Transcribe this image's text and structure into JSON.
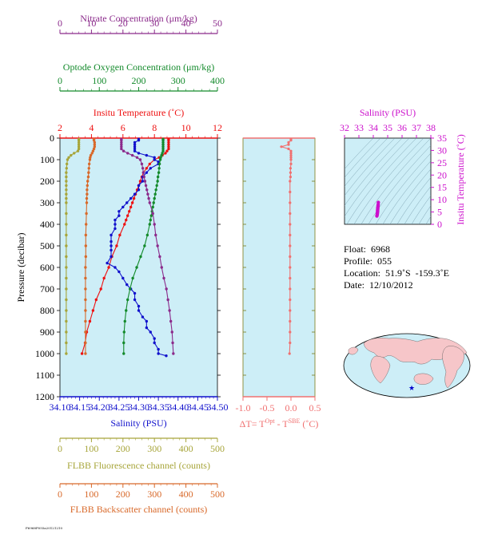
{
  "colors": {
    "nitrate": "#8b2a8b",
    "oxygen": "#138a2b",
    "temperature": "#ee1111",
    "salinity": "#1111cc",
    "fluorescence": "#a7a53a",
    "backscatter": "#d8692a",
    "delta_t": "#f07070",
    "salinity_top": "#cc11cc",
    "plot_bg": "#cdeef7",
    "axis_olive": "#7a7a18"
  },
  "info": {
    "float": "Float:  6968",
    "profile": "Profile:  055",
    "location": "Location:  51.9˚S  -159.3˚E",
    "date": "Date:  12/10/2012"
  },
  "footer_text": "F6968P055a20121210",
  "chart_data": [
    {
      "type": "line",
      "title": "",
      "ylabel": "Pressure (decibar)",
      "ylim": [
        1200,
        0
      ],
      "yticks": [
        "0",
        "100",
        "200",
        "300",
        "400",
        "500",
        "600",
        "700",
        "800",
        "900",
        "1000",
        "1100",
        "1200"
      ],
      "axes": [
        {
          "key": "nitrate",
          "label": "Nitrate Concentration (μm/kg)",
          "lim": [
            0,
            50
          ],
          "ticks": [
            "0",
            "10",
            "20",
            "30",
            "40",
            "50"
          ]
        },
        {
          "key": "oxygen",
          "label": "Optode Oxygen Concentration (μm/kg)",
          "lim": [
            0,
            400
          ],
          "ticks": [
            "0",
            "100",
            "200",
            "300",
            "400"
          ]
        },
        {
          "key": "temperature",
          "label": "Insitu Temperature (˚C)",
          "lim": [
            2,
            12
          ],
          "ticks": [
            "2",
            "4",
            "6",
            "8",
            "10",
            "12"
          ]
        },
        {
          "key": "salinity",
          "label": "Salinity (PSU)",
          "lim": [
            34.1,
            34.5
          ],
          "ticks": [
            "34.10",
            "34.15",
            "34.20",
            "34.25",
            "34.30",
            "34.35",
            "34.40",
            "34.45",
            "34.50"
          ]
        },
        {
          "key": "fluorescence",
          "label": "FLBB Fluorescence channel (counts)",
          "lim": [
            0,
            500
          ],
          "ticks": [
            "0",
            "100",
            "200",
            "300",
            "400",
            "500"
          ]
        },
        {
          "key": "backscatter",
          "label": "FLBB Backscatter channel (counts)",
          "lim": [
            0,
            500
          ],
          "ticks": [
            "0",
            "100",
            "200",
            "300",
            "400",
            "500"
          ]
        }
      ],
      "series": [
        {
          "key": "temperature",
          "pressure": [
            5,
            10,
            20,
            30,
            40,
            50,
            60,
            70,
            80,
            90,
            100,
            120,
            140,
            160,
            180,
            200,
            220,
            240,
            260,
            280,
            300,
            320,
            340,
            360,
            380,
            400,
            450,
            500,
            550,
            600,
            650,
            700,
            750,
            800,
            850,
            900,
            950,
            1000
          ],
          "values": [
            8.9,
            8.9,
            8.9,
            8.9,
            8.9,
            8.9,
            8.8,
            8.7,
            8.5,
            8.3,
            8.0,
            7.7,
            7.5,
            7.3,
            7.2,
            7.1,
            7.0,
            6.9,
            6.8,
            6.7,
            6.6,
            6.5,
            6.4,
            6.3,
            6.2,
            6.1,
            5.8,
            5.6,
            5.3,
            5.1,
            4.8,
            4.6,
            4.3,
            4.1,
            3.9,
            3.7,
            3.6,
            3.4
          ]
        },
        {
          "key": "salinity",
          "pressure": [
            5,
            10,
            20,
            30,
            40,
            50,
            60,
            70,
            80,
            90,
            100,
            110,
            120,
            140,
            160,
            180,
            200,
            220,
            240,
            260,
            280,
            300,
            320,
            340,
            360,
            380,
            400,
            420,
            450,
            480,
            500,
            520,
            550,
            580,
            600,
            620,
            650,
            680,
            700,
            720,
            750,
            780,
            800,
            830,
            850,
            880,
            900,
            930,
            950,
            980,
            1000,
            1010
          ],
          "values": [
            34.3,
            34.3,
            34.29,
            34.29,
            34.29,
            34.29,
            34.29,
            34.3,
            34.32,
            34.34,
            34.34,
            34.35,
            34.35,
            34.33,
            34.32,
            34.31,
            34.31,
            34.3,
            34.3,
            34.29,
            34.28,
            34.27,
            34.26,
            34.25,
            34.25,
            34.24,
            34.24,
            34.24,
            34.23,
            34.23,
            34.23,
            34.23,
            34.23,
            34.22,
            34.24,
            34.25,
            34.26,
            34.27,
            34.28,
            34.29,
            34.29,
            34.3,
            34.3,
            34.31,
            34.32,
            34.32,
            34.33,
            34.34,
            34.34,
            34.35,
            34.35,
            34.37
          ]
        },
        {
          "key": "oxygen",
          "pressure": [
            5,
            10,
            20,
            30,
            40,
            50,
            60,
            70,
            80,
            90,
            100,
            120,
            140,
            160,
            180,
            200,
            220,
            240,
            260,
            280,
            300,
            320,
            340,
            360,
            380,
            400,
            450,
            500,
            550,
            600,
            650,
            700,
            750,
            800,
            850,
            900,
            950,
            1000
          ],
          "values": [
            262,
            262,
            262,
            262,
            262,
            262,
            262,
            260,
            258,
            256,
            255,
            253,
            252,
            251,
            249,
            248,
            246,
            244,
            242,
            240,
            238,
            236,
            234,
            232,
            230,
            228,
            222,
            215,
            205,
            195,
            185,
            178,
            172,
            168,
            165,
            163,
            162,
            162
          ]
        },
        {
          "key": "nitrate",
          "pressure": [
            5,
            10,
            20,
            30,
            40,
            50,
            60,
            70,
            80,
            90,
            100,
            120,
            140,
            160,
            180,
            200,
            220,
            240,
            260,
            280,
            300,
            350,
            400,
            450,
            500,
            550,
            600,
            650,
            700,
            750,
            800,
            850,
            900,
            950,
            1000
          ],
          "values": [
            19.5,
            19.5,
            19.5,
            19.5,
            19.5,
            19.5,
            20.2,
            21.5,
            23.0,
            24.5,
            25.5,
            26.0,
            26.3,
            26.5,
            26.7,
            27.0,
            27.3,
            27.6,
            27.9,
            28.2,
            28.5,
            29.5,
            30.0,
            30.4,
            31.0,
            31.7,
            32.3,
            33.0,
            33.8,
            34.3,
            34.8,
            35.2,
            35.6,
            35.8,
            36.0
          ]
        },
        {
          "key": "fluorescence",
          "pressure": [
            5,
            10,
            20,
            30,
            40,
            50,
            60,
            70,
            80,
            90,
            100,
            120,
            140,
            160,
            180,
            200,
            220,
            240,
            260,
            280,
            300,
            350,
            400,
            450,
            500,
            550,
            600,
            650,
            700,
            750,
            800,
            850,
            900,
            950,
            1000
          ],
          "values": [
            60,
            60,
            60,
            60,
            60,
            60,
            57,
            45,
            35,
            28,
            24,
            22,
            21,
            20,
            20,
            20,
            20,
            20,
            20,
            20,
            20,
            20,
            20,
            20,
            20,
            20,
            20,
            20,
            20,
            20,
            20,
            20,
            20,
            20,
            20
          ]
        },
        {
          "key": "backscatter",
          "pressure": [
            5,
            10,
            20,
            30,
            40,
            50,
            60,
            70,
            80,
            90,
            100,
            120,
            140,
            160,
            180,
            200,
            220,
            240,
            260,
            280,
            300,
            350,
            400,
            450,
            500,
            550,
            600,
            650,
            700,
            750,
            800,
            850,
            900,
            950,
            1000
          ],
          "values": [
            108,
            108,
            110,
            110,
            110,
            108,
            105,
            102,
            98,
            96,
            95,
            93,
            92,
            91,
            90,
            88,
            87,
            86,
            86,
            85,
            85,
            84,
            83,
            82,
            82,
            82,
            81,
            81,
            81,
            81,
            81,
            81,
            81,
            81,
            81
          ]
        }
      ]
    },
    {
      "type": "line",
      "xlabel": "ΔT= T",
      "xlabel_sup1": "Opt",
      "xlabel_mid": " - T",
      "xlabel_sup2": "SBE",
      "xlabel_end": " (˚C)",
      "xlim": [
        -1.0,
        0.5
      ],
      "xticks": [
        "-1.0",
        "-0.5",
        "0.0",
        "0.5"
      ],
      "ylim": [
        1200,
        0
      ],
      "pressure": [
        5,
        10,
        20,
        30,
        40,
        50,
        60,
        70,
        80,
        90,
        100,
        120,
        140,
        160,
        180,
        200,
        250,
        300,
        350,
        400,
        450,
        500,
        550,
        600,
        650,
        700,
        750,
        800,
        850,
        900,
        950,
        1000
      ],
      "values": [
        0.0,
        0.0,
        -0.05,
        -0.05,
        -0.2,
        -0.05,
        0.0,
        0.0,
        0.0,
        0.0,
        0.0,
        0.0,
        -0.01,
        -0.01,
        -0.01,
        -0.02,
        -0.02,
        -0.02,
        -0.02,
        -0.02,
        -0.02,
        -0.02,
        -0.02,
        -0.02,
        -0.02,
        -0.02,
        -0.02,
        -0.02,
        -0.02,
        -0.02,
        -0.02,
        -0.03
      ]
    },
    {
      "type": "scatter",
      "title": "Salinity (PSU)",
      "ylabel": "Insitu Temperature (˚C)",
      "xlim": [
        32,
        38
      ],
      "ylim": [
        0,
        35
      ],
      "xticks": [
        "32",
        "33",
        "34",
        "35",
        "36",
        "37",
        "38"
      ],
      "yticks": [
        "0",
        "5",
        "10",
        "15",
        "20",
        "25",
        "30",
        "35"
      ],
      "salinity": [
        34.25,
        34.27,
        34.28,
        34.29,
        34.3,
        34.3,
        34.31,
        34.31,
        34.32,
        34.33,
        34.34,
        34.35
      ],
      "temperature": [
        3.4,
        3.8,
        4.3,
        4.8,
        5.3,
        5.8,
        6.2,
        6.6,
        7.0,
        7.5,
        8.0,
        8.9
      ]
    }
  ]
}
